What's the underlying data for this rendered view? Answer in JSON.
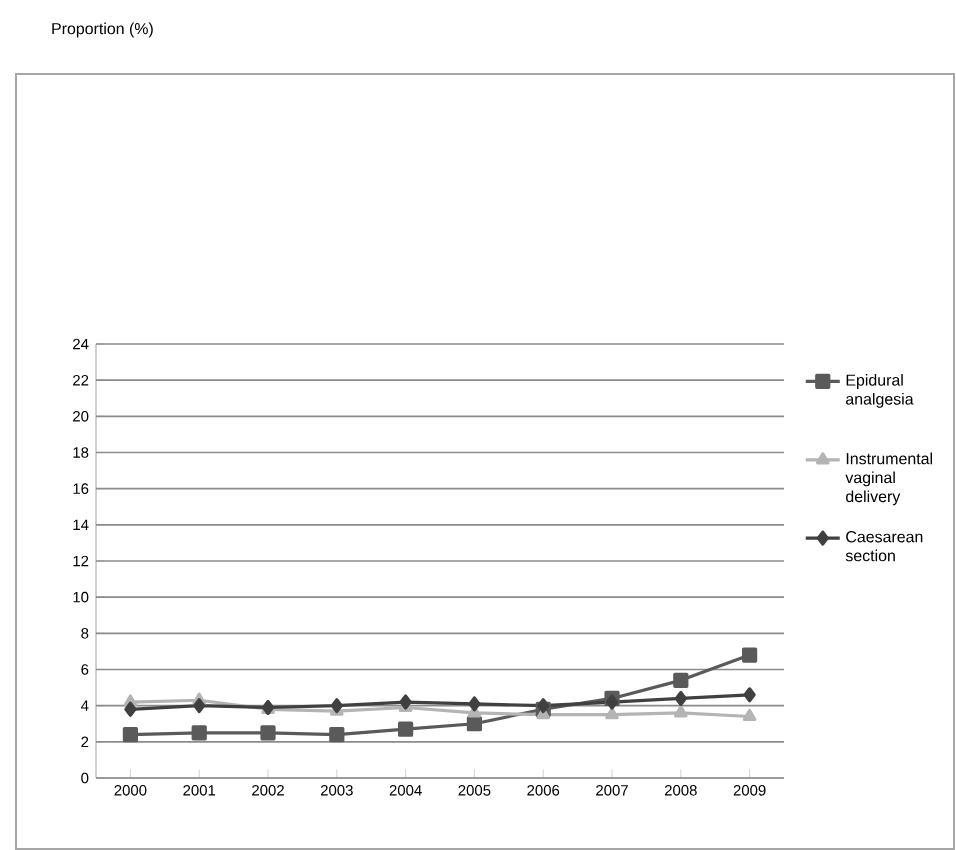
{
  "chart_data": {
    "type": "line",
    "annotations": [
      "Proportion (%)"
    ],
    "categories": [
      "2000",
      "2001",
      "2002",
      "2003",
      "2004",
      "2005",
      "2006",
      "2007",
      "2008",
      "2009"
    ],
    "series": [
      {
        "name": "Epidural analgesia",
        "color": "#5a5a5a",
        "marker": "square",
        "values": [
          2.4,
          2.5,
          2.5,
          2.4,
          2.7,
          3.0,
          3.8,
          4.4,
          5.4,
          6.8
        ]
      },
      {
        "name": "Instrumental vaginal delivery",
        "color": "#b4b4b4",
        "marker": "triangle",
        "values": [
          4.2,
          4.3,
          3.8,
          3.7,
          3.9,
          3.6,
          3.5,
          3.5,
          3.6,
          3.4
        ]
      },
      {
        "name": "Caesarean section",
        "color": "#404040",
        "marker": "diamond",
        "values": [
          3.8,
          4.0,
          3.9,
          4.0,
          4.2,
          4.1,
          4.0,
          4.2,
          4.4,
          4.6
        ]
      }
    ],
    "ylim": [
      0,
      24
    ],
    "yticks": [
      0,
      2,
      4,
      6,
      8,
      10,
      12,
      14,
      16,
      18,
      20,
      22,
      24
    ],
    "grid": "y",
    "legend": "right",
    "line_style": "solid"
  }
}
